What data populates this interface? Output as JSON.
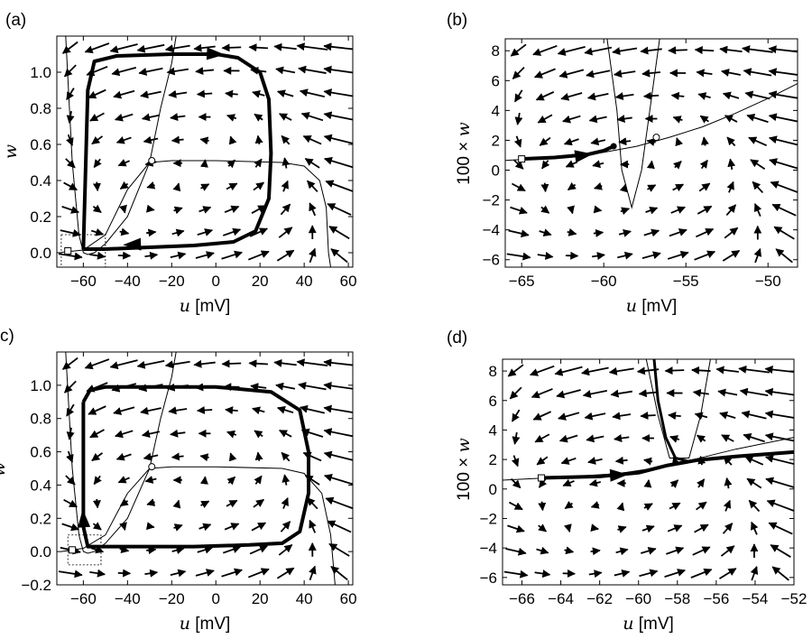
{
  "chart_data": [
    {
      "id": "a",
      "panel_label": "(a)",
      "type": "scatter",
      "title": "",
      "xlabel_var": "u",
      "xlabel_unit": "[mV]",
      "ylabel_var": "w",
      "ylabel_unit": "",
      "xlim": [
        -72,
        62
      ],
      "ylim": [
        -0.08,
        1.2
      ],
      "xticks": [
        -60,
        -40,
        -20,
        0,
        20,
        40,
        60
      ],
      "xtick_labels": [
        "−60",
        "−40",
        "−20",
        "0",
        "20",
        "40",
        "60"
      ],
      "yticks": [
        0.0,
        0.2,
        0.4,
        0.6,
        0.8,
        1.0
      ],
      "ytick_labels": [
        "0.0",
        "0.2",
        "0.4",
        "0.6",
        "0.8",
        "1.0"
      ],
      "trajectory": [
        [
          -60,
          0.02
        ],
        [
          -58,
          0.9
        ],
        [
          -55,
          1.06
        ],
        [
          -45,
          1.09
        ],
        [
          -20,
          1.1
        ],
        [
          0,
          1.1
        ],
        [
          10,
          1.08
        ],
        [
          20,
          1.0
        ],
        [
          24,
          0.85
        ],
        [
          25,
          0.55
        ],
        [
          24,
          0.3
        ],
        [
          18,
          0.12
        ],
        [
          8,
          0.06
        ],
        [
          -10,
          0.04
        ],
        [
          -30,
          0.03
        ],
        [
          -50,
          0.02
        ],
        [
          -60,
          0.02
        ]
      ],
      "trajectory_arrows": [
        [
          -38,
          0.045
        ],
        [
          0,
          1.1
        ]
      ],
      "nullcline_w": [
        [
          -70,
          0.002
        ],
        [
          -60,
          0.015
        ],
        [
          -50,
          0.1
        ],
        [
          -40,
          0.35
        ],
        [
          -30,
          0.5
        ],
        [
          -20,
          0.51
        ],
        [
          0,
          0.51
        ],
        [
          30,
          0.5
        ],
        [
          40,
          0.48
        ],
        [
          47,
          0.4
        ],
        [
          50,
          0.25
        ],
        [
          51,
          0.0
        ],
        [
          52,
          -0.08
        ]
      ],
      "nullcline_u": [
        [
          -68,
          1.2
        ],
        [
          -65,
          0.5
        ],
        [
          -62,
          0.1
        ],
        [
          -60,
          0.0
        ],
        [
          -58,
          -0.01
        ],
        [
          -55,
          0.0
        ],
        [
          -50,
          0.05
        ],
        [
          -40,
          0.2
        ],
        [
          -30,
          0.5
        ],
        [
          -25,
          0.8
        ],
        [
          -20,
          1.05
        ],
        [
          -18,
          1.2
        ]
      ],
      "fixed_point_open": [
        -29,
        0.51
      ],
      "start_square": [
        -67,
        0.01
      ],
      "zoom_box": {
        "x0": -70,
        "x1": -50,
        "y0": -0.08,
        "y1": 0.1
      }
    },
    {
      "id": "b",
      "panel_label": "(b)",
      "type": "scatter",
      "xlabel_var": "u",
      "xlabel_unit": "[mV]",
      "ylabel_prefix": "100 × ",
      "ylabel_var": "w",
      "xlim": [
        -66,
        -48.2
      ],
      "ylim": [
        -6.5,
        8.8
      ],
      "xticks": [
        -65,
        -60,
        -55,
        -50
      ],
      "xtick_labels": [
        "−65",
        "−60",
        "−55",
        "−50"
      ],
      "yticks": [
        -6,
        -4,
        -2,
        0,
        2,
        4,
        6,
        8
      ],
      "ytick_labels": [
        "−6",
        "−4",
        "−2",
        "0",
        "2",
        "4",
        "6",
        "8"
      ],
      "trajectory": [
        [
          -65,
          0.75
        ],
        [
          -63,
          0.85
        ],
        [
          -61,
          1.05
        ],
        [
          -60,
          1.3
        ],
        [
          -59.4,
          1.6
        ]
      ],
      "trajectory_arrows": [
        [
          -61.2,
          1.0
        ]
      ],
      "nullcline_w": [
        [
          -66,
          0.65
        ],
        [
          -62,
          0.9
        ],
        [
          -60,
          1.2
        ],
        [
          -58,
          1.6
        ],
        [
          -56,
          2.2
        ],
        [
          -54,
          2.9
        ],
        [
          -52,
          3.8
        ],
        [
          -50,
          4.8
        ],
        [
          -48.2,
          5.8
        ]
      ],
      "nullcline_u": [
        [
          -59.8,
          8.8
        ],
        [
          -59.2,
          4
        ],
        [
          -58.9,
          0
        ],
        [
          -58.3,
          -2.5
        ],
        [
          -57.7,
          0
        ],
        [
          -57.2,
          4
        ],
        [
          -56.6,
          8.8
        ]
      ],
      "fixed_point_open": [
        -56.8,
        2.2
      ],
      "fixed_point_filled": [
        -59.4,
        1.6
      ],
      "start_square": [
        -65,
        0.75
      ]
    },
    {
      "id": "c",
      "panel_label": "c)",
      "type": "scatter",
      "xlabel_var": "u",
      "xlabel_unit": "[mV]",
      "ylabel_var": "w",
      "xlim": [
        -72,
        62
      ],
      "ylim": [
        -0.2,
        1.2
      ],
      "xticks": [
        -60,
        -40,
        -20,
        0,
        20,
        40,
        60
      ],
      "xtick_labels": [
        "−60",
        "−40",
        "−20",
        "0",
        "20",
        "40",
        "60"
      ],
      "yticks": [
        -0.2,
        0.0,
        0.2,
        0.4,
        0.6,
        0.8,
        1.0
      ],
      "ytick_labels": [
        "−0.2",
        "0.0",
        "0.2",
        "0.4",
        "0.6",
        "0.8",
        "1.0"
      ],
      "trajectory": [
        [
          -60,
          0.9
        ],
        [
          -57,
          0.97
        ],
        [
          -50,
          0.99
        ],
        [
          -30,
          0.99
        ],
        [
          0,
          0.99
        ],
        [
          25,
          0.96
        ],
        [
          38,
          0.85
        ],
        [
          42,
          0.6
        ],
        [
          42,
          0.35
        ],
        [
          38,
          0.12
        ],
        [
          30,
          0.05
        ],
        [
          15,
          0.04
        ],
        [
          -10,
          0.03
        ],
        [
          -40,
          0.03
        ],
        [
          -58,
          0.03
        ],
        [
          -60,
          0.15
        ],
        [
          -60,
          0.4
        ],
        [
          -60,
          0.9
        ]
      ],
      "trajectory_arrows": [
        [
          -60,
          0.2
        ]
      ],
      "nullcline_w": [
        [
          -70,
          0.0
        ],
        [
          -60,
          0.02
        ],
        [
          -50,
          0.1
        ],
        [
          -40,
          0.35
        ],
        [
          -30,
          0.5
        ],
        [
          -20,
          0.51
        ],
        [
          0,
          0.51
        ],
        [
          30,
          0.5
        ],
        [
          40,
          0.47
        ],
        [
          48,
          0.35
        ],
        [
          52,
          0.1
        ],
        [
          54,
          -0.2
        ]
      ],
      "nullcline_u": [
        [
          -68,
          1.2
        ],
        [
          -65,
          0.5
        ],
        [
          -62,
          0.1
        ],
        [
          -60,
          0.0
        ],
        [
          -58,
          -0.01
        ],
        [
          -55,
          0.0
        ],
        [
          -50,
          0.05
        ],
        [
          -40,
          0.2
        ],
        [
          -30,
          0.5
        ],
        [
          -25,
          0.8
        ],
        [
          -20,
          1.05
        ],
        [
          -18,
          1.2
        ]
      ],
      "fixed_point_open": [
        -29,
        0.51
      ],
      "start_square": [
        -65,
        0.01
      ],
      "zoom_box": {
        "x0": -67,
        "x1": -52,
        "y0": -0.08,
        "y1": 0.1
      }
    },
    {
      "id": "d",
      "panel_label": "(d)",
      "type": "scatter",
      "xlabel_var": "u",
      "xlabel_unit": "[mV]",
      "ylabel_prefix": "100 × ",
      "ylabel_var": "w",
      "xlim": [
        -67,
        -52
      ],
      "ylim": [
        -6.5,
        8.8
      ],
      "xticks": [
        -66,
        -64,
        -62,
        -60,
        -58,
        -56,
        -54,
        -52
      ],
      "xtick_labels": [
        "−66",
        "−64",
        "−62",
        "−60",
        "−58",
        "−56",
        "−54",
        "−52"
      ],
      "yticks": [
        -6,
        -4,
        -2,
        0,
        2,
        4,
        6,
        8
      ],
      "ytick_labels": [
        "−6",
        "−4",
        "−2",
        "0",
        "2",
        "4",
        "6",
        "8"
      ],
      "trajectory": [
        [
          -65,
          0.75
        ],
        [
          -62,
          0.85
        ],
        [
          -60,
          1.1
        ],
        [
          -58.5,
          1.6
        ],
        [
          -57,
          1.95
        ],
        [
          -55,
          2.2
        ],
        [
          -52,
          2.5
        ]
      ],
      "trajectory_branch": [
        [
          -59.2,
          8.8
        ],
        [
          -59,
          6
        ],
        [
          -58.6,
          3.5
        ],
        [
          -58.1,
          2.1
        ],
        [
          -57.5,
          1.9
        ]
      ],
      "trajectory_arrows": [
        [
          -61,
          0.95
        ]
      ],
      "nullcline_w": [
        [
          -67,
          0.6
        ],
        [
          -64,
          0.8
        ],
        [
          -61,
          1.05
        ],
        [
          -59,
          1.45
        ],
        [
          -57,
          2.05
        ],
        [
          -55,
          2.7
        ],
        [
          -52,
          3.5
        ]
      ],
      "nullcline_u": [
        [
          -59.6,
          8.8
        ],
        [
          -59,
          5
        ],
        [
          -58.4,
          2.1
        ],
        [
          -57.4,
          2.1
        ],
        [
          -56.8,
          5
        ],
        [
          -56.3,
          8.8
        ]
      ],
      "start_square": [
        -65,
        0.75
      ]
    }
  ]
}
